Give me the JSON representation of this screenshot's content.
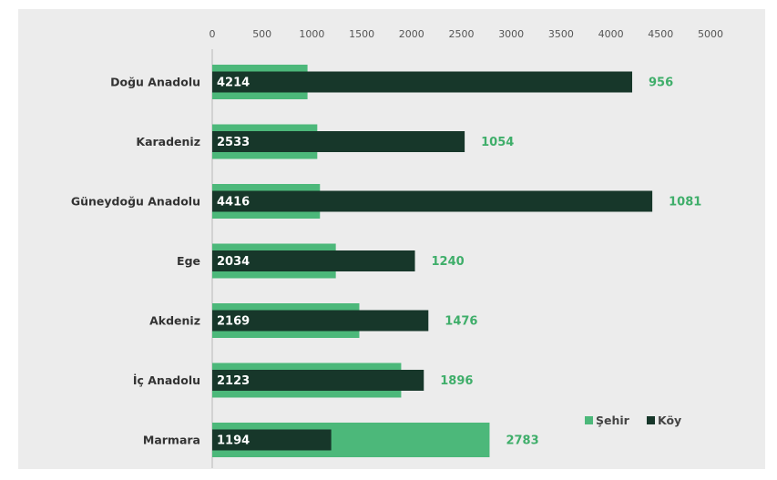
{
  "chart_data": {
    "type": "bar",
    "orientation": "horizontal",
    "categories": [
      "Doğu Anadolu",
      "Karadeniz",
      "Güneydoğu Anadolu",
      "Ege",
      "Akdeniz",
      "İç Anadolu",
      "Marmara"
    ],
    "series": [
      {
        "name": "Şehir",
        "values": [
          956,
          1054,
          1081,
          1240,
          1476,
          1896,
          2783
        ],
        "color": "#4cb87a"
      },
      {
        "name": "Köy",
        "values": [
          4214,
          2533,
          4416,
          2034,
          2169,
          2123,
          1194
        ],
        "color": "#17372a"
      }
    ],
    "x_ticks": [
      "0",
      "500",
      "1000",
      "1500",
      "2000",
      "2500",
      "3000",
      "3500",
      "4000",
      "4500",
      "5000"
    ],
    "xlim": [
      0,
      5000
    ],
    "axis_position": "top",
    "legend_position": "bottom-right",
    "grid": false
  }
}
